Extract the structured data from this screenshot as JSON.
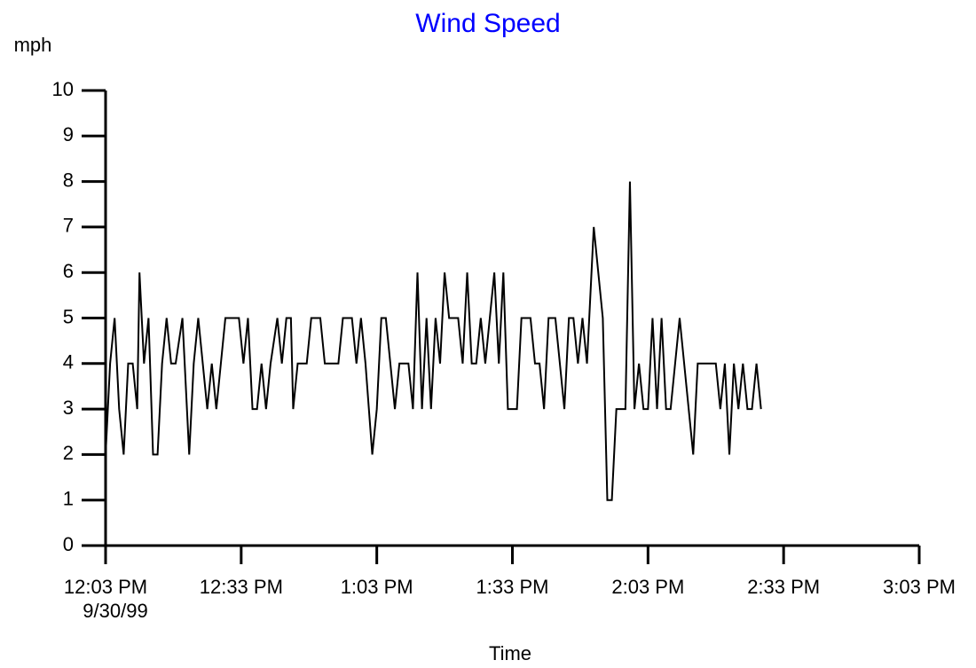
{
  "chart_data": {
    "type": "line",
    "title": "Wind Speed",
    "title_color": "#0000ff",
    "y_label": "mph",
    "x_label": "Time",
    "x_start_date": "9/30/99",
    "xlim": [
      0,
      180
    ],
    "ylim": [
      0,
      10
    ],
    "xticks": [
      {
        "value": 0,
        "label": "12:03 PM"
      },
      {
        "value": 30,
        "label": "12:33 PM"
      },
      {
        "value": 60,
        "label": "1:03 PM"
      },
      {
        "value": 90,
        "label": "1:33 PM"
      },
      {
        "value": 120,
        "label": "2:03 PM"
      },
      {
        "value": 150,
        "label": "2:33 PM"
      },
      {
        "value": 180,
        "label": "3:03 PM"
      }
    ],
    "yticks": [
      0,
      1,
      2,
      3,
      4,
      5,
      6,
      7,
      8,
      9,
      10
    ],
    "series": [
      {
        "color": "#000000",
        "x": [
          0,
          1,
          2,
          3,
          4,
          5,
          6,
          7,
          7.5,
          8.5,
          9.5,
          10.5,
          11.5,
          12.5,
          13.5,
          14.5,
          15.5,
          17,
          18.5,
          19.5,
          20.5,
          21.5,
          22.5,
          23.5,
          24.5,
          25.5,
          26.5,
          27.5,
          28.5,
          29.5,
          30.5,
          31.5,
          32.5,
          33.5,
          34.5,
          35.5,
          36.5,
          38,
          39,
          40,
          41,
          41.5,
          42.5,
          43.5,
          44.5,
          45.5,
          46.5,
          47.5,
          48.5,
          49.5,
          50.5,
          51.5,
          52.5,
          53.5,
          54.5,
          55.5,
          56.5,
          57.5,
          59,
          60,
          61,
          62,
          63,
          64,
          65,
          66,
          67,
          68,
          69,
          70,
          71,
          72,
          73,
          74,
          75,
          76,
          77,
          78,
          79,
          80,
          81,
          82,
          83,
          84,
          85,
          86,
          87,
          88,
          89,
          90,
          91,
          92,
          93,
          94,
          95,
          96,
          97,
          98,
          98.5,
          99.5,
          100.5,
          101.5,
          102.5,
          103.5,
          104.5,
          105.5,
          106.5,
          108,
          110,
          111,
          112,
          113,
          114,
          115,
          116,
          117,
          118,
          119,
          120,
          121,
          122,
          123,
          124,
          125,
          126,
          127,
          128,
          129,
          130,
          131,
          132,
          133,
          134,
          135,
          136,
          137,
          138,
          139,
          140,
          141,
          142,
          143,
          144,
          145
        ],
        "values": [
          2,
          4,
          5,
          3,
          2,
          4,
          4,
          3,
          6,
          4,
          5,
          2,
          2,
          4,
          5,
          4,
          4,
          5,
          2,
          4,
          5,
          4,
          3,
          4,
          3,
          4,
          5,
          5,
          5,
          5,
          4,
          5,
          3,
          3,
          4,
          3,
          4,
          5,
          4,
          5,
          5,
          3,
          4,
          4,
          4,
          5,
          5,
          5,
          4,
          4,
          4,
          4,
          5,
          5,
          5,
          4,
          5,
          4,
          2,
          3,
          5,
          5,
          4,
          3,
          4,
          4,
          4,
          3,
          6,
          3,
          5,
          3,
          5,
          4,
          6,
          5,
          5,
          5,
          4,
          6,
          4,
          4,
          5,
          4,
          5,
          6,
          4,
          6,
          3,
          3,
          3,
          5,
          5,
          5,
          4,
          4,
          3,
          5,
          5,
          5,
          4,
          3,
          5,
          5,
          4,
          5,
          4,
          7,
          5,
          1,
          1,
          3,
          3,
          3,
          8,
          3,
          4,
          3,
          3,
          5,
          3,
          5,
          3,
          3,
          4,
          5,
          4,
          3,
          2,
          4,
          4,
          4,
          4,
          4,
          3,
          4,
          2,
          4,
          3,
          4,
          3,
          3,
          4,
          3
        ]
      }
    ]
  }
}
